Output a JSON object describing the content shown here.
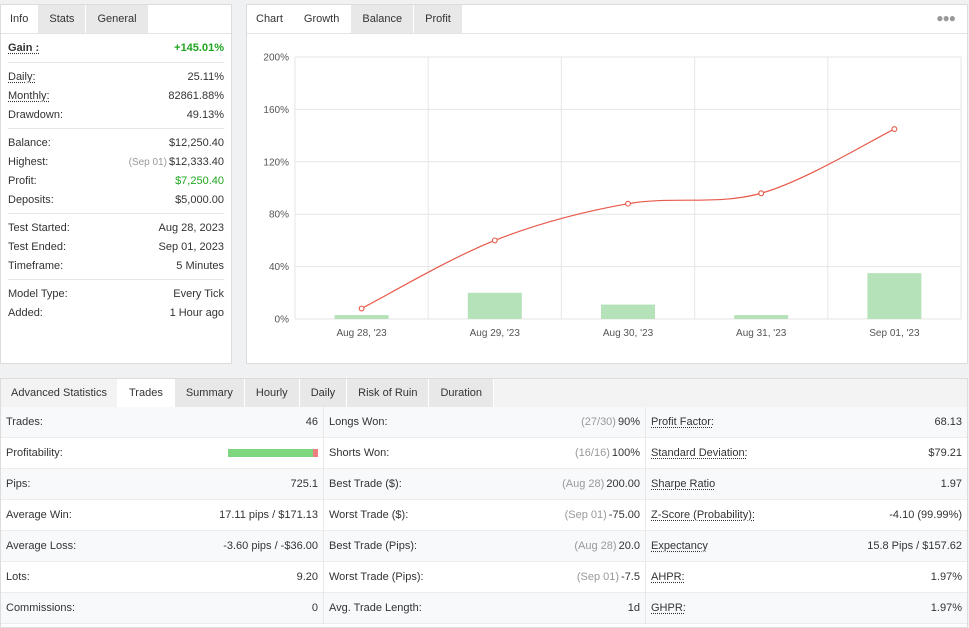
{
  "info_panel": {
    "tabs": [
      {
        "label": "Info",
        "name": "tab-info"
      },
      {
        "label": "Stats",
        "name": "tab-stats"
      },
      {
        "label": "General",
        "name": "tab-general"
      }
    ],
    "gain": {
      "label": "Gain :",
      "value": "+145.01%"
    },
    "group1": [
      {
        "label": "Daily:",
        "value": "25.11%"
      },
      {
        "label": "Monthly:",
        "value": "82861.88%"
      },
      {
        "label": "Drawdown:",
        "value": "49.13%"
      }
    ],
    "balance": {
      "label": "Balance:",
      "value": "$12,250.40"
    },
    "highest": {
      "label": "Highest:",
      "date": "(Sep 01)",
      "value": "$12,333.40"
    },
    "profit": {
      "label": "Profit:",
      "value": "$7,250.40"
    },
    "deposits": {
      "label": "Deposits:",
      "value": "$5,000.00"
    },
    "group3": [
      {
        "label": "Test Started:",
        "value": "Aug 28, 2023"
      },
      {
        "label": "Test Ended:",
        "value": "Sep 01, 2023"
      },
      {
        "label": "Timeframe:",
        "value": "5 Minutes"
      }
    ],
    "group4": [
      {
        "label": "Model Type:",
        "value": "Every Tick"
      },
      {
        "label": "Added:",
        "value": "1 Hour ago"
      }
    ]
  },
  "chart_panel": {
    "tabs": [
      {
        "label": "Chart",
        "name": "tab-chart"
      },
      {
        "label": "Growth",
        "name": "tab-growth"
      },
      {
        "label": "Balance",
        "name": "tab-balance"
      },
      {
        "label": "Profit",
        "name": "tab-profit"
      }
    ],
    "menu_icon": "more-horizontal-icon"
  },
  "chart_data": {
    "type": "line",
    "categories": [
      "Aug 28, '23",
      "Aug 29, '23",
      "Aug 30, '23",
      "Aug 31, '23",
      "Sep 01, '23"
    ],
    "yticks": [
      "0%",
      "40%",
      "80%",
      "120%",
      "160%",
      "200%"
    ],
    "ylim": [
      0,
      200
    ],
    "grid": true,
    "series": [
      {
        "type": "line",
        "color": "#e8594a",
        "values": [
          8,
          60,
          88,
          96,
          145
        ]
      },
      {
        "type": "bar",
        "color": "#b5e2b8",
        "values": [
          3,
          20,
          11,
          3,
          35
        ]
      }
    ]
  },
  "advanced": {
    "tabs": [
      {
        "label": "Advanced Statistics",
        "name": "tab-advanced-statistics"
      },
      {
        "label": "Trades",
        "name": "tab-trades"
      },
      {
        "label": "Summary",
        "name": "tab-summary"
      },
      {
        "label": "Hourly",
        "name": "tab-hourly"
      },
      {
        "label": "Daily",
        "name": "tab-daily"
      },
      {
        "label": "Risk of Ruin",
        "name": "tab-risk-of-ruin"
      },
      {
        "label": "Duration",
        "name": "tab-duration"
      }
    ],
    "col1": {
      "trades": {
        "label": "Trades:",
        "value": "46"
      },
      "profitability": {
        "label": "Profitability:",
        "won_fraction": 0.94
      },
      "pips": {
        "label": "Pips:",
        "value": "725.1"
      },
      "avg_win": {
        "label": "Average Win:",
        "value": "17.11 pips / $171.13"
      },
      "avg_loss": {
        "label": "Average Loss:",
        "value": "-3.60 pips / -$36.00"
      },
      "lots": {
        "label": "Lots:",
        "value": "9.20"
      },
      "commissions": {
        "label": "Commissions:",
        "value": "0"
      }
    },
    "col2": {
      "longs": {
        "label": "Longs Won:",
        "detail": "(27/30)",
        "value": "90%"
      },
      "shorts": {
        "label": "Shorts Won:",
        "detail": "(16/16)",
        "value": "100%"
      },
      "best_usd": {
        "label": "Best Trade ($):",
        "detail": "(Aug 28)",
        "value": "200.00"
      },
      "worst_usd": {
        "label": "Worst Trade ($):",
        "detail": "(Sep 01)",
        "value": "-75.00"
      },
      "best_pips": {
        "label": "Best Trade (Pips):",
        "detail": "(Aug 28)",
        "value": "20.0"
      },
      "worst_pips": {
        "label": "Worst Trade (Pips):",
        "detail": "(Sep 01)",
        "value": "-7.5"
      },
      "avg_len": {
        "label": "Avg. Trade Length:",
        "value": "1d"
      }
    },
    "col3": {
      "profit_factor": {
        "label": "Profit Factor:",
        "value": "68.13"
      },
      "std_dev": {
        "label": "Standard Deviation:",
        "value": "$79.21"
      },
      "sharpe": {
        "label": "Sharpe Ratio",
        "value": "1.97"
      },
      "zscore": {
        "label": "Z-Score (Probability):",
        "value": "-4.10 (99.99%)"
      },
      "expectancy": {
        "label": "Expectancy",
        "value": "15.8 Pips / $157.62"
      },
      "ahpr": {
        "label": "AHPR:",
        "value": "1.97%"
      },
      "ghpr": {
        "label": "GHPR:",
        "value": "1.97%"
      }
    }
  }
}
